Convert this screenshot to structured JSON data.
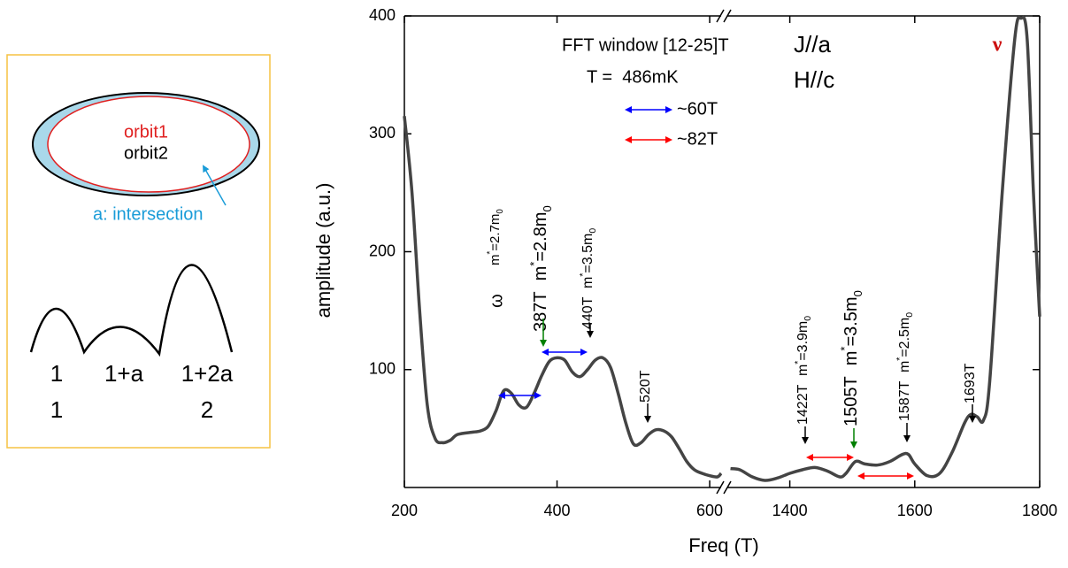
{
  "inset": {
    "orbit1": "orbit1",
    "orbit2": "orbit2",
    "intersection": "a: intersection",
    "labels": [
      "1",
      "1+a",
      "1+2a",
      "1",
      "2"
    ]
  },
  "chart_data": {
    "type": "line",
    "xlabel": "Freq (T)",
    "ylabel": "amplitude (a.u.)",
    "color": "#444444",
    "ylim": [
      0,
      400
    ],
    "yticks": [
      100,
      200,
      300,
      400
    ],
    "segments": [
      {
        "xlim": [
          200,
          615
        ],
        "xticks": [
          200,
          400,
          600
        ],
        "x": [
          200,
          210,
          220,
          230,
          240,
          250,
          260,
          270,
          290,
          300,
          310,
          320,
          330,
          340,
          350,
          360,
          370,
          380,
          390,
          400,
          410,
          420,
          430,
          440,
          450,
          460,
          470,
          480,
          490,
          500,
          510,
          520,
          530,
          540,
          550,
          560,
          570,
          580,
          590,
          600,
          610,
          615
        ],
        "values": [
          315,
          250,
          150,
          70,
          42,
          38,
          40,
          45,
          47,
          48,
          52,
          65,
          82,
          80,
          70,
          68,
          80,
          95,
          107,
          110,
          108,
          98,
          94,
          100,
          108,
          110,
          102,
          80,
          55,
          37,
          38,
          45,
          49,
          48,
          43,
          33,
          22,
          15,
          12,
          10,
          9,
          12
        ]
      },
      {
        "xlim": [
          1300,
          1800
        ],
        "xticks": [
          1400,
          1600,
          1800
        ],
        "x": [
          1305,
          1320,
          1340,
          1360,
          1380,
          1400,
          1420,
          1440,
          1460,
          1480,
          1490,
          1505,
          1520,
          1540,
          1560,
          1580,
          1590,
          1600,
          1620,
          1640,
          1660,
          1680,
          1690,
          1700,
          1710,
          1720,
          1740,
          1760,
          1770,
          1780,
          1790,
          1800
        ],
        "values": [
          16,
          15,
          9,
          6,
          8,
          12,
          15,
          17,
          14,
          9,
          12,
          22,
          20,
          19,
          22,
          28,
          28,
          20,
          10,
          12,
          30,
          55,
          62,
          60,
          57,
          90,
          250,
          380,
          398,
          380,
          250,
          145
        ]
      }
    ],
    "window": "FFT window [12-25]T",
    "temperature": "T =  486mK",
    "current": "J//a",
    "field": "H//c",
    "omega": "ω",
    "nu": "ν",
    "span_legend": [
      {
        "label": "~60T",
        "color": "#0000ff"
      },
      {
        "label": "~82T",
        "color": "#ff0000"
      }
    ],
    "annotations": [
      {
        "mass": [
          "m",
          "*",
          "=2.7m",
          "0"
        ]
      },
      {
        "freq": "387T",
        "mass": [
          "m",
          "*",
          "=2.8m",
          "0"
        ],
        "arrow_color": "#008000"
      },
      {
        "freq": "440T",
        "mass": [
          "m",
          "*",
          "=3.5m",
          "0"
        ],
        "arrow_color": "#000000"
      },
      {
        "freq": "520T",
        "arrow_color": "#000000"
      },
      {
        "freq": "1422T",
        "mass": [
          "m",
          "*",
          "=3.9m",
          "0"
        ],
        "arrow_color": "#000000"
      },
      {
        "freq": "1505T",
        "mass": [
          "m",
          "*",
          "=3.5m",
          "0"
        ],
        "arrow_color": "#008000"
      },
      {
        "freq": "1587T",
        "mass": [
          "m",
          "*",
          "=2.5m",
          "0"
        ],
        "arrow_color": "#000000"
      },
      {
        "freq": "1693T",
        "arrow_color": "#000000"
      }
    ]
  }
}
